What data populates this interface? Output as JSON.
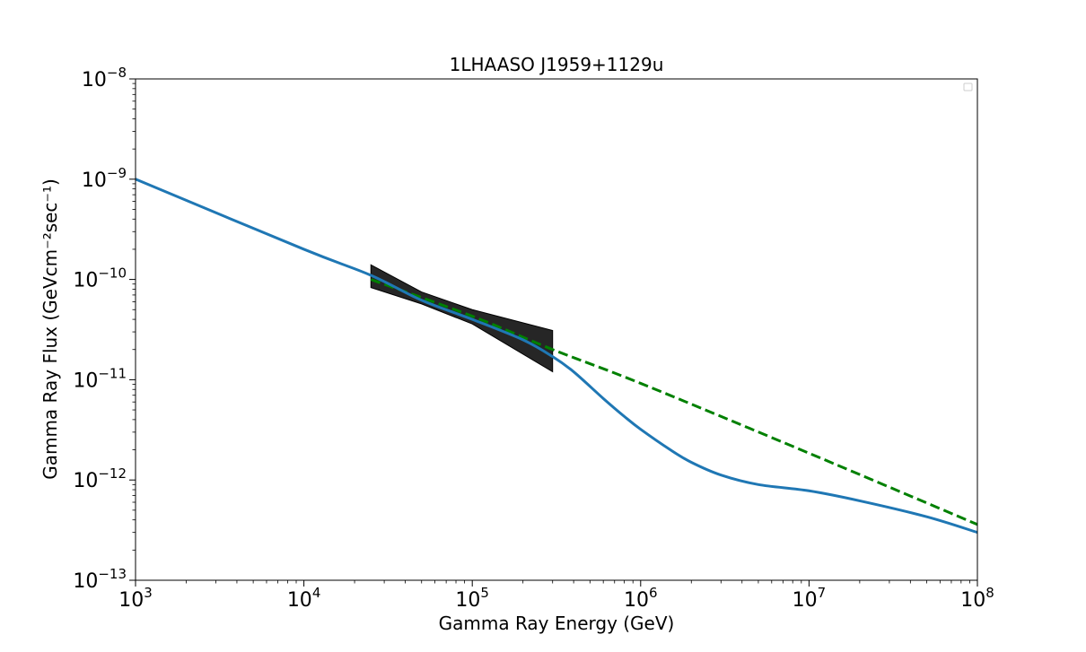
{
  "chart_data": {
    "type": "line",
    "title": "1LHAASO J1959+1129u",
    "xlabel": "Gamma Ray Energy (GeV)",
    "ylabel": "Gamma Ray Flux (GeVcm⁻²sec⁻¹)",
    "x_scale": "log",
    "y_scale": "log",
    "xlim": [
      1000,
      100000000
    ],
    "ylim": [
      1e-13,
      1e-08
    ],
    "x_ticks": [
      {
        "value": 1000,
        "label": "10",
        "exp": "3"
      },
      {
        "value": 10000,
        "label": "10",
        "exp": "4"
      },
      {
        "value": 100000,
        "label": "10",
        "exp": "5"
      },
      {
        "value": 1000000,
        "label": "10",
        "exp": "6"
      },
      {
        "value": 10000000,
        "label": "10",
        "exp": "7"
      },
      {
        "value": 100000000,
        "label": "10",
        "exp": "8"
      }
    ],
    "y_ticks": [
      {
        "value": 1e-13,
        "label": "10",
        "exp": "−13"
      },
      {
        "value": 1e-12,
        "label": "10",
        "exp": "−12"
      },
      {
        "value": 1e-11,
        "label": "10",
        "exp": "−11"
      },
      {
        "value": 1e-10,
        "label": "10",
        "exp": "−10"
      },
      {
        "value": 1e-09,
        "label": "10",
        "exp": "−9"
      },
      {
        "value": 1e-08,
        "label": "10",
        "exp": "−8"
      }
    ],
    "grid": false,
    "legend": "top-right (empty)",
    "series": [
      {
        "style": "solid",
        "color": "#1f77b4",
        "points": [
          [
            1000,
            1e-09
          ],
          [
            10000,
            2e-10
          ],
          [
            25000,
            1.1e-10
          ],
          [
            50000,
            6.2e-11
          ],
          [
            100000,
            4e-11
          ],
          [
            200000,
            2.5e-11
          ],
          [
            300000,
            1.7e-11
          ],
          [
            400000,
            1.2e-11
          ],
          [
            600000,
            6.5e-12
          ],
          [
            800000,
            4.3e-12
          ],
          [
            1000000,
            3.2e-12
          ],
          [
            1500000,
            2e-12
          ],
          [
            2000000,
            1.5e-12
          ],
          [
            3000000,
            1.12e-12
          ],
          [
            5000000,
            9e-13
          ],
          [
            10000000,
            7.8e-13
          ],
          [
            20000000,
            6.2e-13
          ],
          [
            50000000,
            4.3e-13
          ],
          [
            100000000,
            3e-13
          ]
        ]
      },
      {
        "style": "dashed",
        "color": "#008000",
        "points": [
          [
            25000,
            1e-10
          ],
          [
            100000,
            4.3e-11
          ],
          [
            300000,
            2e-11
          ],
          [
            1000000,
            9.2e-12
          ],
          [
            10000000,
            1.85e-12
          ],
          [
            100000000,
            3.6e-13
          ]
        ]
      }
    ],
    "band": {
      "color": "#1a1a1a",
      "x_range": [
        25000,
        300000
      ],
      "upper": [
        [
          25000,
          1.4e-10
        ],
        [
          50000,
          7.5e-11
        ],
        [
          100000,
          5e-11
        ],
        [
          300000,
          3.1e-11
        ]
      ],
      "lower": [
        [
          25000,
          8.3e-11
        ],
        [
          50000,
          5.7e-11
        ],
        [
          100000,
          3.6e-11
        ],
        [
          300000,
          1.2e-11
        ]
      ]
    }
  }
}
